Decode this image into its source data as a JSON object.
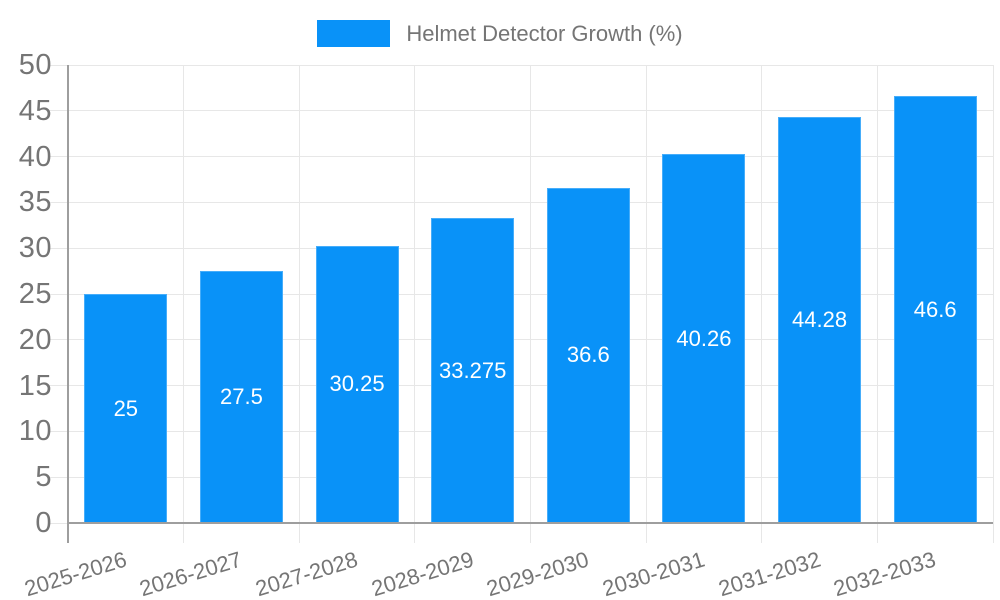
{
  "page": {
    "background": "#FFFFFF"
  },
  "chart_data": {
    "type": "bar",
    "legend": "Helmet Detector Growth (%)",
    "legend_position": "top",
    "categories": [
      "2025-2026",
      "2026-2027",
      "2027-2028",
      "2028-2029",
      "2029-2030",
      "2030-2031",
      "2031-2032",
      "2032-2033"
    ],
    "values": [
      25,
      27.5,
      30.25,
      33.275,
      36.6,
      40.26,
      44.28,
      46.6
    ],
    "value_labels": [
      "25",
      "27.5",
      "30.25",
      "33.275",
      "36.6",
      "40.26",
      "44.28",
      "46.6"
    ],
    "yticks": [
      0,
      5,
      10,
      15,
      20,
      25,
      30,
      35,
      40,
      45,
      50
    ],
    "ylim": [
      0,
      50
    ],
    "grid": true,
    "xlabel": "",
    "ylabel": "",
    "colors": {
      "bar": "#0992F8",
      "grid": "#E7E7E7",
      "axis": "#9E9E9E",
      "text": "#757575",
      "value_label": "#FFFFFF"
    }
  }
}
